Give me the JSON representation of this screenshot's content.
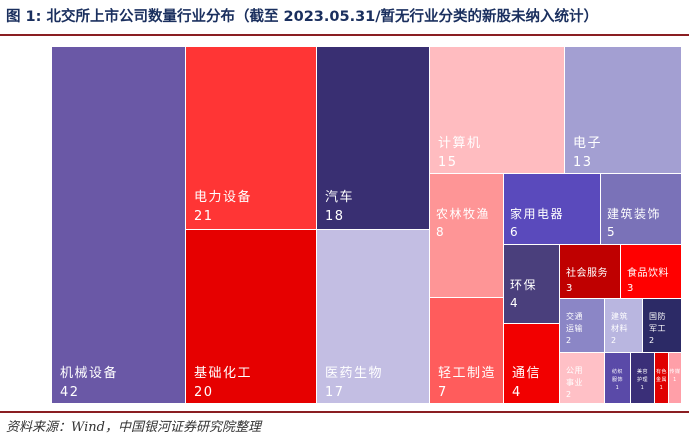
{
  "title": "图 1:  北交所上市公司数量行业分布（截至 2023.05.31/暂无行业分类的新股未纳入统计）",
  "source": "资料来源：Wind，中国银河证券研究院整理",
  "chart_data": {
    "type": "treemap",
    "title": "图 1:  北交所上市公司数量行业分布（截至 2023.05.31/暂无行业分类的新股未纳入统计）",
    "xlabel": "",
    "ylabel": "",
    "items": [
      {
        "name": "机械设备",
        "value": 42,
        "color": "#6a58a6",
        "text_color": "#ffffff"
      },
      {
        "name": "电力设备",
        "value": 21,
        "color": "#ff3535",
        "text_color": "#ffffff"
      },
      {
        "name": "基础化工",
        "value": 20,
        "color": "#e60000",
        "text_color": "#ffffff"
      },
      {
        "name": "汽车",
        "value": 18,
        "color": "#392f72",
        "text_color": "#ffffff"
      },
      {
        "name": "医药生物",
        "value": 17,
        "color": "#c3bee3",
        "text_color": "#ffffff"
      },
      {
        "name": "计算机",
        "value": 15,
        "color": "#ffbcc0",
        "text_color": "#ffffff"
      },
      {
        "name": "电子",
        "value": 13,
        "color": "#a39fd2",
        "text_color": "#ffffff"
      },
      {
        "name": "农林牧渔",
        "value": 8,
        "color": "#fe9596",
        "text_color": "#ffffff"
      },
      {
        "name": "轻工制造",
        "value": 7,
        "color": "#ff5c5c",
        "text_color": "#ffffff"
      },
      {
        "name": "家用电器",
        "value": 6,
        "color": "#5a4abc",
        "text_color": "#ffffff"
      },
      {
        "name": "建筑装饰",
        "value": 5,
        "color": "#7a72b8",
        "text_color": "#ffffff"
      },
      {
        "name": "环保",
        "value": 4,
        "color": "#4a3f7c",
        "text_color": "#ffffff"
      },
      {
        "name": "通信",
        "value": 4,
        "color": "#f20000",
        "text_color": "#ffffff"
      },
      {
        "name": "社会服务",
        "value": 3,
        "color": "#bf0000",
        "text_color": "#ffffff"
      },
      {
        "name": "食品饮料",
        "value": 3,
        "color": "#ff0000",
        "text_color": "#ffffff"
      },
      {
        "name": "交通运输",
        "value": 2,
        "color": "#8b86c6",
        "text_color": "#ffffff"
      },
      {
        "name": "建筑材料",
        "value": 2,
        "color": "#b9b6e0",
        "text_color": "#ffffff"
      },
      {
        "name": "国防军工",
        "value": 2,
        "color": "#2c2a66",
        "text_color": "#ffffff"
      },
      {
        "name": "公用事业",
        "value": 2,
        "color": "#ffc0c6",
        "text_color": "#ffffff"
      },
      {
        "name": "纺织服饰",
        "value": 1,
        "color": "#5a4aa8",
        "text_color": "#ffffff"
      },
      {
        "name": "美容护理",
        "value": 1,
        "color": "#3a2f78",
        "text_color": "#ffffff"
      },
      {
        "name": "有色金属",
        "value": 1,
        "color": "#e00000",
        "text_color": "#ffffff"
      },
      {
        "name": "传媒",
        "value": 1,
        "color": "#ff9fa8",
        "text_color": "#ffffff"
      }
    ]
  }
}
